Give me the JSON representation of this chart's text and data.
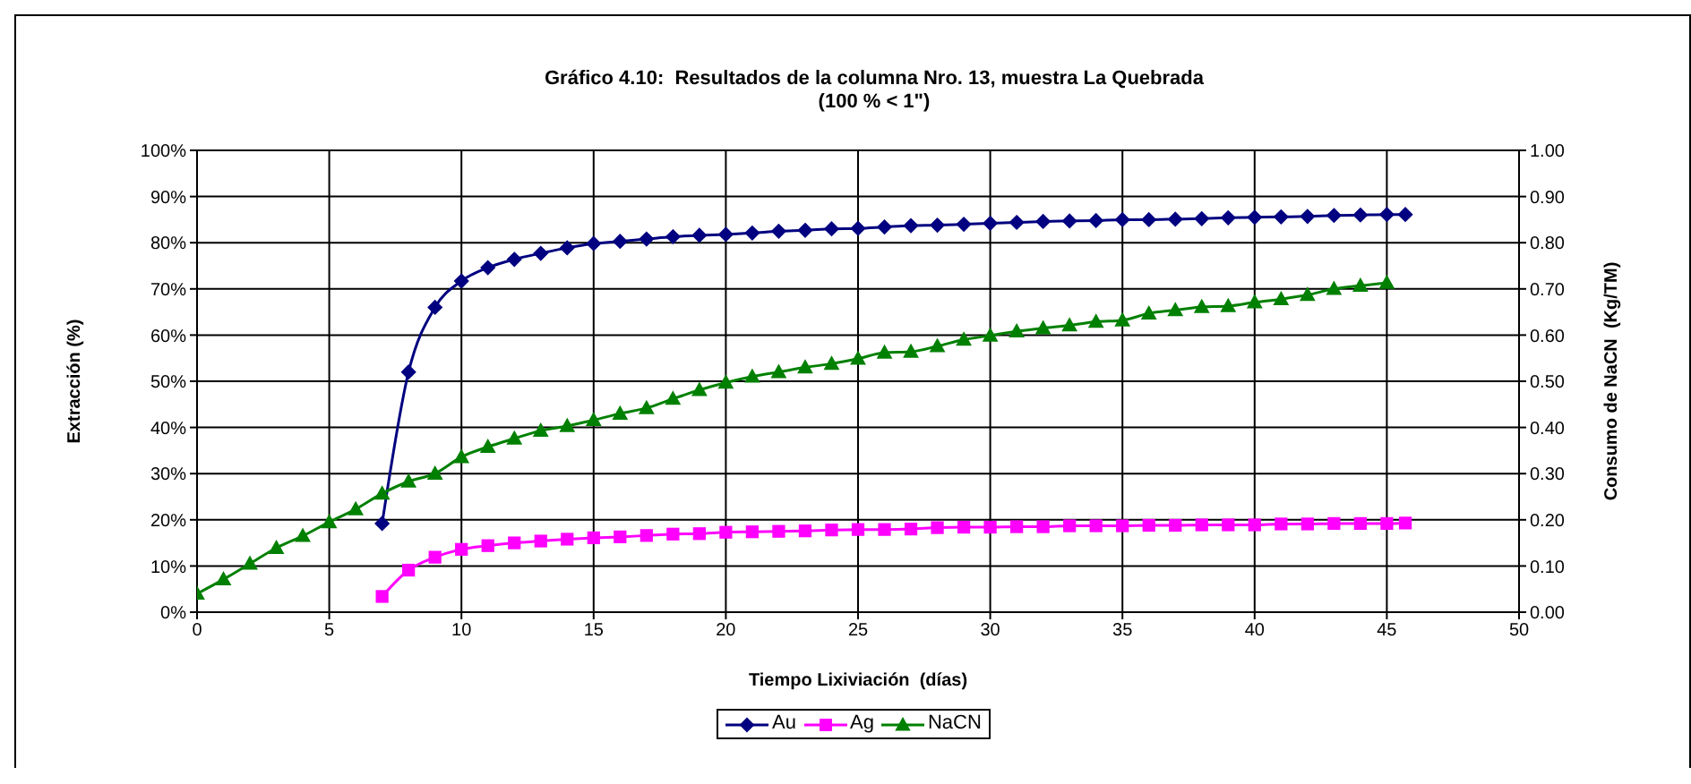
{
  "chart_data": {
    "type": "line",
    "title": "Gráfico 4.10:  Resultados de la columna Nro. 13, muestra La Quebrada",
    "subtitle": "(100 % < 1\")",
    "xlabel": "Tiempo Lixiviación  (días)",
    "ylabel": "Extracción (%)",
    "y2label": "Consumo de NaCN  (Kg/TM)",
    "xlim": [
      0,
      50
    ],
    "xticks": [
      0,
      5,
      10,
      15,
      20,
      25,
      30,
      35,
      40,
      45,
      50
    ],
    "ylim": [
      0,
      100
    ],
    "yticks": [
      {
        "value": 0,
        "label": "0%"
      },
      {
        "value": 10,
        "label": "10%"
      },
      {
        "value": 20,
        "label": "20%"
      },
      {
        "value": 30,
        "label": "30%"
      },
      {
        "value": 40,
        "label": "40%"
      },
      {
        "value": 50,
        "label": "50%"
      },
      {
        "value": 60,
        "label": "60%"
      },
      {
        "value": 70,
        "label": "70%"
      },
      {
        "value": 80,
        "label": "80%"
      },
      {
        "value": 90,
        "label": "90%"
      },
      {
        "value": 100,
        "label": "100%"
      }
    ],
    "y2lim": [
      0,
      1
    ],
    "y2ticks": [
      {
        "value": 0,
        "label": "0.00"
      },
      {
        "value": 0.1,
        "label": "0.10"
      },
      {
        "value": 0.2,
        "label": "0.20"
      },
      {
        "value": 0.3,
        "label": "0.30"
      },
      {
        "value": 0.4,
        "label": "0.40"
      },
      {
        "value": 0.5,
        "label": "0.50"
      },
      {
        "value": 0.6,
        "label": "0.60"
      },
      {
        "value": 0.7,
        "label": "0.70"
      },
      {
        "value": 0.8,
        "label": "0.80"
      },
      {
        "value": 0.9,
        "label": "0.90"
      },
      {
        "value": 1,
        "label": "1.00"
      }
    ],
    "grid": true,
    "legend": "bottom",
    "series": [
      {
        "name": "Au",
        "color": "#000080",
        "marker": "diamond",
        "x": [
          7,
          8,
          9,
          10,
          11,
          12,
          13,
          14,
          15,
          16,
          17,
          18,
          19,
          20,
          21,
          22,
          23,
          24,
          25,
          26,
          27,
          28,
          29,
          30,
          31,
          32,
          33,
          34,
          35,
          36,
          37,
          38,
          39,
          40,
          41,
          42,
          43,
          44,
          45,
          45.7
        ],
        "values": [
          19.2,
          52.0,
          66.0,
          71.7,
          74.6,
          76.4,
          77.7,
          78.9,
          79.8,
          80.3,
          80.8,
          81.3,
          81.6,
          81.8,
          82.1,
          82.5,
          82.7,
          83.0,
          83.1,
          83.4,
          83.7,
          83.8,
          84.0,
          84.2,
          84.4,
          84.6,
          84.7,
          84.8,
          85.0,
          85.0,
          85.1,
          85.2,
          85.4,
          85.5,
          85.6,
          85.7,
          85.9,
          86.0,
          86.1,
          86.1
        ]
      },
      {
        "name": "Ag",
        "color": "#ff00ff",
        "marker": "square",
        "x": [
          7,
          8,
          9,
          10,
          11,
          12,
          13,
          14,
          15,
          16,
          17,
          18,
          19,
          20,
          21,
          22,
          23,
          24,
          25,
          26,
          27,
          28,
          29,
          30,
          31,
          32,
          33,
          34,
          35,
          36,
          37,
          38,
          39,
          40,
          41,
          42,
          43,
          44,
          45,
          45.7
        ],
        "values": [
          3.4,
          9.1,
          11.9,
          13.6,
          14.4,
          15.0,
          15.4,
          15.8,
          16.1,
          16.3,
          16.6,
          16.9,
          17.0,
          17.3,
          17.4,
          17.5,
          17.6,
          17.8,
          17.9,
          17.9,
          18.0,
          18.3,
          18.4,
          18.4,
          18.5,
          18.5,
          18.7,
          18.7,
          18.7,
          18.8,
          18.8,
          18.9,
          18.9,
          18.9,
          19.1,
          19.1,
          19.2,
          19.2,
          19.2,
          19.3
        ]
      },
      {
        "name": "NaCN",
        "color": "#008000",
        "marker": "triangle",
        "axis": "y2",
        "x": [
          0,
          1,
          2,
          3,
          4,
          5,
          6,
          7,
          8,
          9,
          10,
          11,
          12,
          13,
          14,
          15,
          16,
          17,
          18,
          19,
          20,
          21,
          22,
          23,
          24,
          25,
          26,
          27,
          28,
          29,
          30,
          31,
          32,
          33,
          34,
          35,
          36,
          37,
          38,
          39,
          40,
          41,
          42,
          43,
          44,
          45
        ],
        "values": [
          0.04,
          0.071,
          0.105,
          0.139,
          0.165,
          0.195,
          0.223,
          0.257,
          0.283,
          0.3,
          0.336,
          0.358,
          0.376,
          0.393,
          0.403,
          0.416,
          0.43,
          0.442,
          0.462,
          0.481,
          0.497,
          0.51,
          0.52,
          0.53,
          0.538,
          0.549,
          0.562,
          0.564,
          0.576,
          0.59,
          0.599,
          0.608,
          0.615,
          0.621,
          0.629,
          0.632,
          0.647,
          0.654,
          0.661,
          0.663,
          0.671,
          0.678,
          0.687,
          0.7,
          0.707,
          0.713
        ]
      }
    ]
  }
}
